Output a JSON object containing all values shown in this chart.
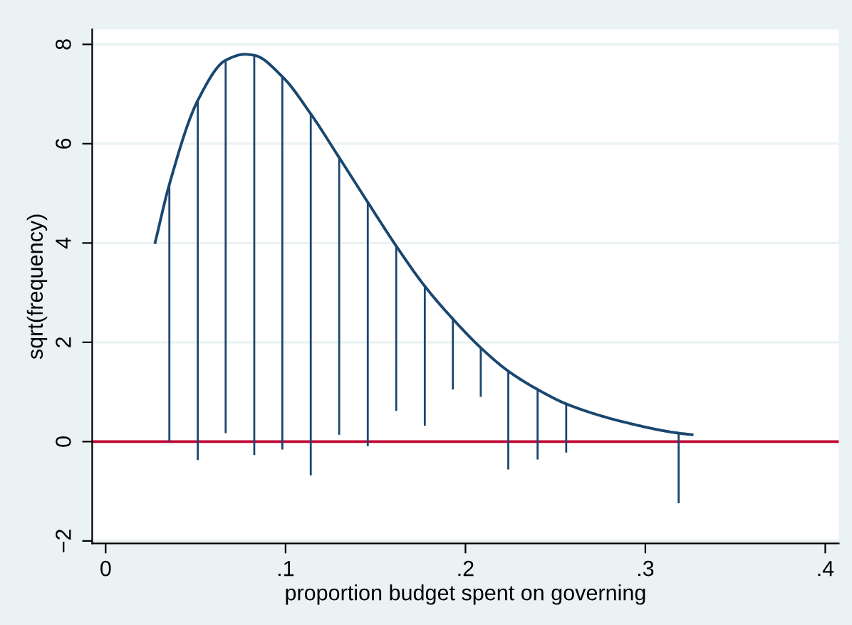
{
  "chart_data": {
    "type": "bar",
    "xlabel": "proportion budget spent on governing",
    "ylabel": "sqrt(frequency)",
    "xlim": [
      -0.0075,
      0.4075
    ],
    "ylim": [
      -2.05,
      8.3
    ],
    "xticks": [
      {
        "value": 0,
        "label": "0"
      },
      {
        "value": 0.1,
        "label": ".1"
      },
      {
        "value": 0.2,
        "label": ".2"
      },
      {
        "value": 0.3,
        "label": ".3"
      },
      {
        "value": 0.4,
        "label": ".4"
      }
    ],
    "yticks": [
      {
        "value": -2,
        "label": "−2"
      },
      0,
      2,
      4,
      6,
      8
    ],
    "grid": "y",
    "legend": false,
    "ref_lines": [
      {
        "axis": "y",
        "value": 0,
        "color": "#c10534"
      }
    ],
    "series": [
      {
        "color": "#1a476f",
        "x": [
          0.0354,
          0.0512,
          0.0667,
          0.0826,
          0.0982,
          0.114,
          0.1298,
          0.1457,
          0.1615,
          0.1774,
          0.193,
          0.2085,
          0.2238,
          0.2401,
          0.256,
          0.3185
        ],
        "base": [
          0,
          -0.37,
          0.17,
          -0.27,
          -0.16,
          -0.68,
          0.14,
          -0.09,
          0.62,
          0.32,
          1.05,
          0.9,
          -0.56,
          -0.36,
          -0.22,
          -1.24
        ],
        "values": [
          5.18,
          7.24,
          7.51,
          8.05,
          7.51,
          7.28,
          5.58,
          4.91,
          3.32,
          2.81,
          1.42,
          0.99,
          1.98,
          1.41,
          0.98,
          1.41
        ]
      },
      {
        "type": "line",
        "color": "#1a476f",
        "x": [
          0.0275,
          0.0354,
          0.0512,
          0.0667,
          0.0773,
          0.0826,
          0.0982,
          0.114,
          0.1298,
          0.1457,
          0.1615,
          0.1774,
          0.193,
          0.2085,
          0.2238,
          0.2401,
          0.256,
          0.2875,
          0.3185,
          0.326
        ],
        "values": [
          4.01,
          5.18,
          6.87,
          7.68,
          7.8,
          7.78,
          7.35,
          6.6,
          5.72,
          4.82,
          3.94,
          3.13,
          2.47,
          1.89,
          1.42,
          1.05,
          0.76,
          0.4,
          0.17,
          0.14
        ]
      }
    ]
  }
}
